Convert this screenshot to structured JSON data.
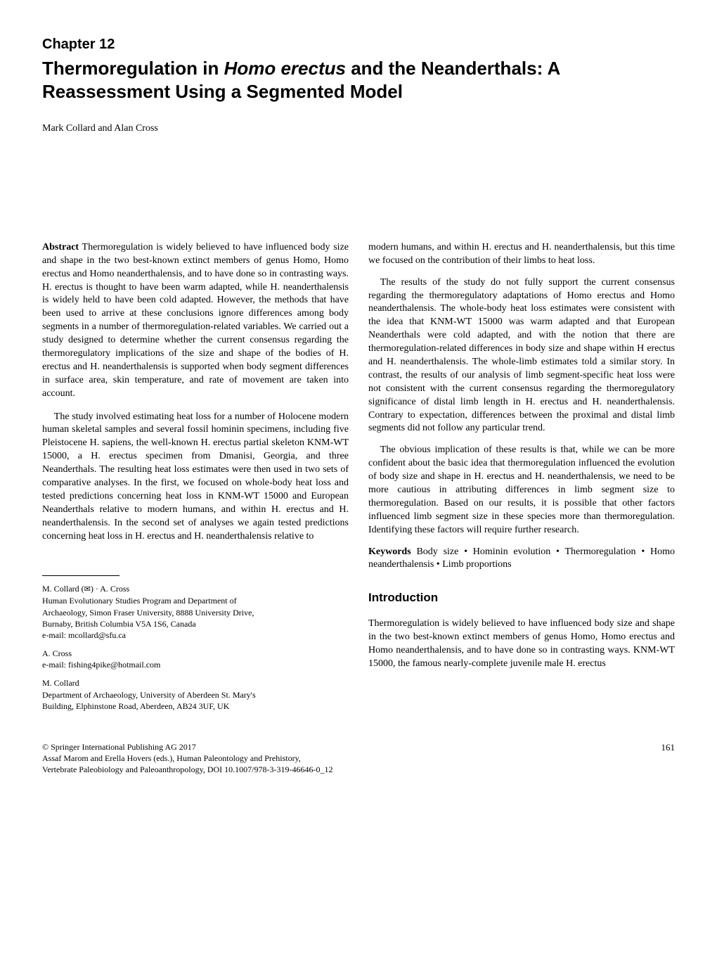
{
  "chapter": "Chapter 12",
  "title_pre": "Thermoregulation in ",
  "title_italic": "Homo erectus",
  "title_post": " and the Neanderthals: A Reassessment Using a Segmented Model",
  "authors": "Mark Collard and Alan Cross",
  "abstract_label": "Abstract",
  "abstract_p1": " Thermoregulation is widely believed to have influenced body size and shape in the two best-known extinct members of genus Homo, Homo erectus and Homo neanderthalensis, and to have done so in contrasting ways. H. erectus is thought to have been warm adapted, while H. neanderthalensis is widely held to have been cold adapted. However, the methods that have been used to arrive at these conclusions ignore differences among body segments in a number of thermoregulation-related variables. We carried out a study designed to determine whether the current consensus regarding the thermoregulatory implications of the size and shape of the bodies of H. erectus and H. neanderthalensis is supported when body segment differences in surface area, skin temperature, and rate of movement are taken into account.",
  "abstract_p2": "The study involved estimating heat loss for a number of Holocene modern human skeletal samples and several fossil hominin specimens, including five Pleistocene H. sapiens, the well-known H. erectus partial skeleton KNM-WT 15000, a H. erectus specimen from Dmanisi, Georgia, and three Neanderthals. The resulting heat loss estimates were then used in two sets of comparative analyses. In the first, we focused on whole-body heat loss and tested predictions concerning heat loss in KNM-WT 15000 and European Neanderthals relative to modern humans, and within H. erectus and H. neanderthalensis. In the second set of analyses we again tested predictions concerning heat loss in H. erectus and H. neanderthalensis relative to",
  "right_p1": "modern humans, and within H. erectus and H. neanderthalensis, but this time we focused on the contribution of their limbs to heat loss.",
  "right_p2": "The results of the study do not fully support the current consensus regarding the thermoregulatory adaptations of Homo erectus and Homo neanderthalensis. The whole-body heat loss estimates were consistent with the idea that KNM-WT 15000 was warm adapted and that European Neanderthals were cold adapted, and with the notion that there are thermoregulation-related differences in body size and shape within H erectus and H. neanderthalensis. The whole-limb estimates told a similar story. In contrast, the results of our analysis of limb segment-specific heat loss were not consistent with the current consensus regarding the thermoregulatory significance of distal limb length in H. erectus and H. neanderthalensis. Contrary to expectation, differences between the proximal and distal limb segments did not follow any particular trend.",
  "right_p3": "The obvious implication of these results is that, while we can be more confident about the basic idea that thermoregulation influenced the evolution of body size and shape in H. erectus and H. neanderthalensis, we need to be more cautious in attributing differences in limb segment size to thermoregulation. Based on our results, it is possible that other factors influenced limb segment size in these species more than thermoregulation. Identifying these factors will require further research.",
  "keywords_label": "Keywords",
  "keywords_text": " Body size • Hominin evolution • Thermoregulation • Homo neanderthalensis • Limb proportions",
  "intro_heading": "Introduction",
  "intro_p1": "Thermoregulation is widely believed to have influenced body size and shape in the two best-known extinct members of genus Homo, Homo erectus and Homo neanderthalensis, and to have done so in contrasting ways. KNM-WT 15000, the famous nearly-complete juvenile male H. erectus",
  "footnote": {
    "line1_a": "M. Collard (",
    "line1_b": ") · A. Cross",
    "aff1_l1": "Human Evolutionary Studies Program and Department of",
    "aff1_l2": "Archaeology, Simon Fraser University, 8888 University Drive,",
    "aff1_l3": "Burnaby, British Columbia V5A 1S6, Canada",
    "aff1_email": "e-mail: mcollard@sfu.ca",
    "line2": "A. Cross",
    "aff2_email": "e-mail: fishing4pike@hotmail.com",
    "line3": "M. Collard",
    "aff3_l1": "Department of Archaeology, University of Aberdeen St. Mary's",
    "aff3_l2": "Building, Elphinstone Road, Aberdeen, AB24 3UF, UK"
  },
  "footer": {
    "copyright": "© Springer International Publishing AG 2017",
    "editors": "Assaf Marom and Erella Hovers (eds.), Human Paleontology and Prehistory,",
    "series": "Vertebrate Paleobiology and Paleoanthropology, DOI 10.1007/978-3-319-46646-0_12",
    "page": "161"
  }
}
